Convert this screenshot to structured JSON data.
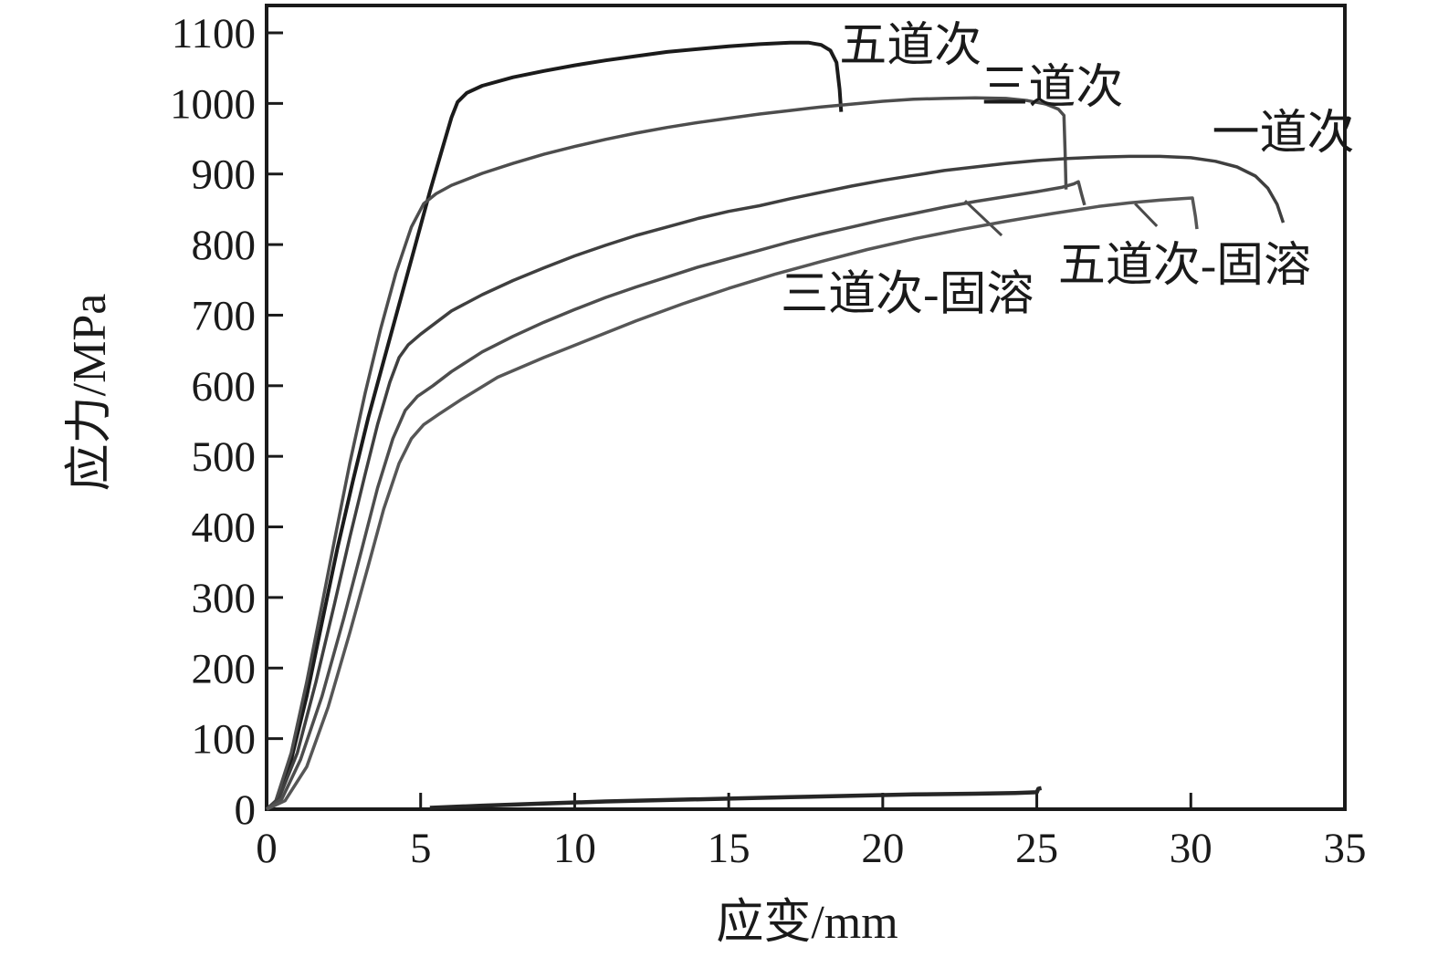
{
  "figure": {
    "title": "",
    "x_axis_title": "应变/mm",
    "y_axis_title": "应力/MPa"
  },
  "chart_data": {
    "type": "line",
    "title": "",
    "xlabel": "应变/mm",
    "ylabel": "应力/MPa",
    "xlim": [
      0,
      35
    ],
    "ylim": [
      0,
      1100
    ],
    "x_ticks": [
      0,
      5,
      10,
      15,
      20,
      25,
      30,
      35
    ],
    "y_ticks": [
      0,
      100,
      200,
      300,
      400,
      500,
      600,
      700,
      800,
      900,
      1000,
      1100
    ],
    "grid": false,
    "legend_position": "inline-annotations",
    "axis_color": "#1a1a1a",
    "series": [
      {
        "key": "five-pass",
        "name": "五道次",
        "color": "#1b1b1b",
        "width": 4,
        "points": [
          [
            0,
            0
          ],
          [
            0.3,
            10
          ],
          [
            0.8,
            70
          ],
          [
            1.3,
            160
          ],
          [
            1.8,
            265
          ],
          [
            2.3,
            370
          ],
          [
            2.8,
            465
          ],
          [
            3.3,
            555
          ],
          [
            3.8,
            635
          ],
          [
            4.3,
            715
          ],
          [
            4.8,
            795
          ],
          [
            5.3,
            875
          ],
          [
            5.7,
            935
          ],
          [
            6.0,
            980
          ],
          [
            6.2,
            1002
          ],
          [
            6.5,
            1015
          ],
          [
            7,
            1025
          ],
          [
            8,
            1037
          ],
          [
            9,
            1046
          ],
          [
            10,
            1054
          ],
          [
            11,
            1061
          ],
          [
            12,
            1067
          ],
          [
            13,
            1073
          ],
          [
            14,
            1077
          ],
          [
            15,
            1081
          ],
          [
            16,
            1084
          ],
          [
            17,
            1086
          ],
          [
            17.6,
            1086
          ],
          [
            18.0,
            1083
          ],
          [
            18.3,
            1075
          ],
          [
            18.5,
            1058
          ],
          [
            18.6,
            1020
          ],
          [
            18.65,
            988
          ]
        ]
      },
      {
        "key": "three-pass",
        "name": "三道次",
        "color": "#4d4d4d",
        "width": 3.5,
        "points": [
          [
            0,
            0
          ],
          [
            0.3,
            12
          ],
          [
            0.8,
            80
          ],
          [
            1.3,
            180
          ],
          [
            1.8,
            290
          ],
          [
            2.2,
            380
          ],
          [
            2.7,
            490
          ],
          [
            3.2,
            590
          ],
          [
            3.7,
            680
          ],
          [
            4.2,
            760
          ],
          [
            4.7,
            825
          ],
          [
            5.1,
            858
          ],
          [
            5.5,
            872
          ],
          [
            6,
            884
          ],
          [
            7,
            901
          ],
          [
            8,
            915
          ],
          [
            9,
            928
          ],
          [
            10,
            939
          ],
          [
            11,
            949
          ],
          [
            12,
            958
          ],
          [
            13,
            966
          ],
          [
            14,
            973
          ],
          [
            15,
            979
          ],
          [
            16,
            985
          ],
          [
            17,
            990
          ],
          [
            18,
            995
          ],
          [
            19,
            999
          ],
          [
            20,
            1003
          ],
          [
            21,
            1006
          ],
          [
            22,
            1007
          ],
          [
            23,
            1008
          ],
          [
            24,
            1007
          ],
          [
            24.7,
            1004
          ],
          [
            25.3,
            999
          ],
          [
            25.7,
            992
          ],
          [
            25.88,
            983
          ],
          [
            25.92,
            930
          ],
          [
            25.95,
            878
          ]
        ]
      },
      {
        "key": "one-pass",
        "name": "一道次",
        "color": "#3f3f3f",
        "width": 3.5,
        "points": [
          [
            0,
            0
          ],
          [
            0.4,
            15
          ],
          [
            1.0,
            80
          ],
          [
            1.6,
            180
          ],
          [
            2.2,
            290
          ],
          [
            2.7,
            385
          ],
          [
            3.2,
            475
          ],
          [
            3.6,
            545
          ],
          [
            4.0,
            605
          ],
          [
            4.3,
            640
          ],
          [
            4.6,
            658
          ],
          [
            5.0,
            673
          ],
          [
            6,
            706
          ],
          [
            7,
            729
          ],
          [
            8,
            749
          ],
          [
            9,
            767
          ],
          [
            10,
            784
          ],
          [
            11,
            799
          ],
          [
            12,
            813
          ],
          [
            13,
            825
          ],
          [
            14,
            837
          ],
          [
            15,
            847
          ],
          [
            16,
            855
          ],
          [
            17,
            865
          ],
          [
            18,
            874
          ],
          [
            19,
            883
          ],
          [
            20,
            891
          ],
          [
            21,
            898
          ],
          [
            22,
            905
          ],
          [
            23,
            910
          ],
          [
            24,
            915
          ],
          [
            25,
            919
          ],
          [
            26,
            922
          ],
          [
            27,
            924
          ],
          [
            28,
            925
          ],
          [
            29,
            925
          ],
          [
            30,
            923
          ],
          [
            30.8,
            918
          ],
          [
            31.5,
            910
          ],
          [
            32.1,
            897
          ],
          [
            32.5,
            880
          ],
          [
            32.8,
            857
          ],
          [
            33.0,
            831
          ]
        ]
      },
      {
        "key": "three-pass-solution",
        "name": "三道次-固溶",
        "color": "#4d4d4d",
        "width": 3.5,
        "points": [
          [
            0,
            0
          ],
          [
            0.5,
            15
          ],
          [
            1.1,
            70
          ],
          [
            1.8,
            160
          ],
          [
            2.5,
            270
          ],
          [
            3.1,
            370
          ],
          [
            3.6,
            455
          ],
          [
            4.1,
            525
          ],
          [
            4.5,
            565
          ],
          [
            4.9,
            585
          ],
          [
            5.4,
            600
          ],
          [
            6,
            620
          ],
          [
            7,
            648
          ],
          [
            8,
            670
          ],
          [
            9,
            690
          ],
          [
            10,
            708
          ],
          [
            11,
            725
          ],
          [
            12,
            740
          ],
          [
            13,
            754
          ],
          [
            14,
            768
          ],
          [
            15,
            780
          ],
          [
            16,
            792
          ],
          [
            17,
            804
          ],
          [
            18,
            815
          ],
          [
            19,
            825
          ],
          [
            20,
            835
          ],
          [
            21,
            844
          ],
          [
            22,
            853
          ],
          [
            23,
            861
          ],
          [
            24,
            868
          ],
          [
            25,
            875
          ],
          [
            25.8,
            881
          ],
          [
            26.2,
            886
          ],
          [
            26.35,
            889
          ],
          [
            26.45,
            872
          ],
          [
            26.55,
            856
          ]
        ]
      },
      {
        "key": "five-pass-solution",
        "name": "五道次-固溶",
        "color": "#565656",
        "width": 3.5,
        "points": [
          [
            0,
            0
          ],
          [
            0.6,
            12
          ],
          [
            1.3,
            60
          ],
          [
            2.0,
            145
          ],
          [
            2.7,
            250
          ],
          [
            3.3,
            345
          ],
          [
            3.8,
            425
          ],
          [
            4.3,
            490
          ],
          [
            4.7,
            525
          ],
          [
            5.1,
            545
          ],
          [
            5.6,
            560
          ],
          [
            6.3,
            580
          ],
          [
            7.5,
            612
          ],
          [
            9,
            640
          ],
          [
            10.5,
            666
          ],
          [
            12,
            692
          ],
          [
            13.5,
            716
          ],
          [
            15,
            738
          ],
          [
            16.5,
            758
          ],
          [
            18,
            776
          ],
          [
            19.5,
            793
          ],
          [
            21,
            808
          ],
          [
            22.5,
            821
          ],
          [
            24,
            833
          ],
          [
            25.5,
            844
          ],
          [
            27,
            854
          ],
          [
            28,
            859
          ],
          [
            29,
            863
          ],
          [
            29.7,
            865
          ],
          [
            30.05,
            866
          ],
          [
            30.15,
            840
          ],
          [
            30.2,
            822
          ]
        ]
      },
      {
        "key": "baseline-trace",
        "name": "",
        "color": "#262626",
        "width": 4.5,
        "points": [
          [
            5.3,
            2
          ],
          [
            7,
            5
          ],
          [
            9,
            8
          ],
          [
            11,
            11
          ],
          [
            13,
            13
          ],
          [
            15,
            15
          ],
          [
            17,
            17
          ],
          [
            19,
            19
          ],
          [
            21,
            21
          ],
          [
            23,
            22
          ],
          [
            24.3,
            23
          ],
          [
            25.0,
            24
          ],
          [
            25.05,
            29
          ],
          [
            25.15,
            30
          ]
        ]
      }
    ],
    "annotations": [
      {
        "key": "five-pass",
        "text": "五道次",
        "x": 20.9,
        "y": 1083
      },
      {
        "key": "three-pass",
        "text": "三道次",
        "x": 25.5,
        "y": 1024
      },
      {
        "key": "one-pass",
        "text": "一道次",
        "x": 33.0,
        "y": 959
      },
      {
        "key": "three-pass-solution",
        "text": "三道次-固溶",
        "x": 20.8,
        "y": 731
      },
      {
        "key": "five-pass-solution",
        "text": "五道次-固溶",
        "x": 29.8,
        "y": 772
      }
    ],
    "leader_lines": [
      {
        "key": "three-pass-solution-leader",
        "x1": 22.67,
        "y1": 862,
        "x2": 23.86,
        "y2": 813
      },
      {
        "key": "five-pass-solution-leader",
        "x1": 28.19,
        "y1": 858,
        "x2": 28.9,
        "y2": 826
      }
    ]
  }
}
